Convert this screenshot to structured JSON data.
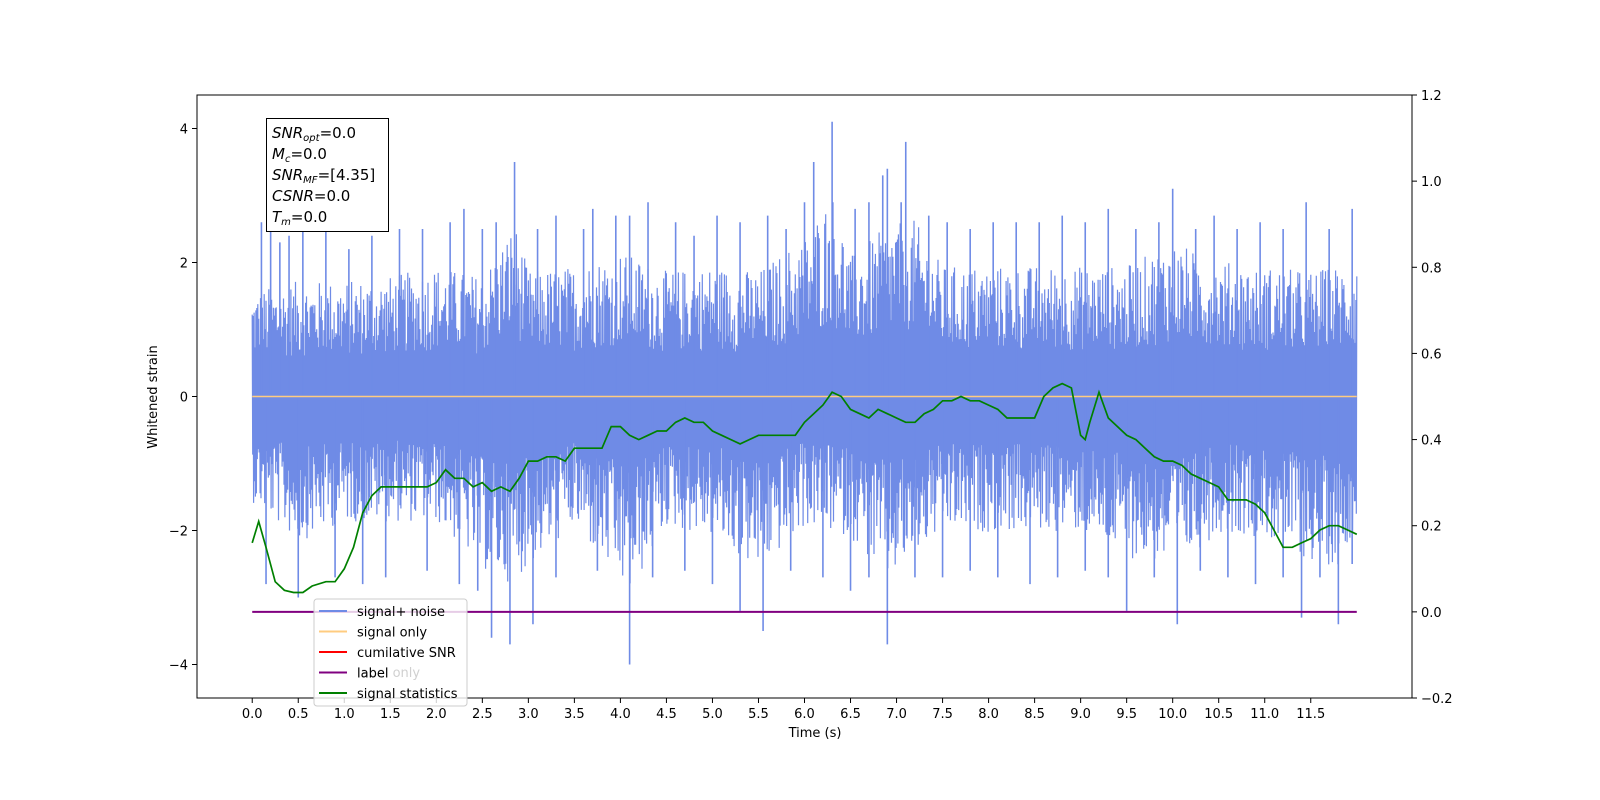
{
  "stats_box": {
    "snr_opt": {
      "sym": "SNR",
      "sub": "opt",
      "value": "=0.0"
    },
    "mc": {
      "sym": "M",
      "sub": "c",
      "value": "=0.0"
    },
    "snr_mf": {
      "sym": "SNR",
      "sub": "MF",
      "value": "=[4.35]"
    },
    "csnr": {
      "sym": "CSNR",
      "value": "=0.0"
    },
    "tm": {
      "sym": "T",
      "sub": "m",
      "value": "=0.0"
    }
  },
  "chart_data": {
    "type": "line",
    "xlabel": "Time (s)",
    "ylabel": "Whitened strain",
    "xlim": [
      -0.6,
      12.6
    ],
    "ylim_left": [
      -4.5,
      4.5
    ],
    "ylim_right": [
      -0.2,
      1.2
    ],
    "x_ticks": [
      "0.0",
      "0.5",
      "1.0",
      "1.5",
      "2.0",
      "2.5",
      "3.0",
      "3.5",
      "4.0",
      "4.5",
      "5.0",
      "5.5",
      "6.0",
      "6.5",
      "7.0",
      "7.5",
      "8.0",
      "8.5",
      "9.0",
      "9.5",
      "10.0",
      "10.5",
      "11.0",
      "11.5"
    ],
    "y_ticks_left": [
      "4",
      "2",
      "0",
      "−2",
      "−4"
    ],
    "y_ticks_right": [
      "1.2",
      "1.0",
      "0.8",
      "0.6",
      "0.4",
      "0.2",
      "0.0",
      "−0.2"
    ],
    "legend": {
      "placement": "lower-left",
      "entries": [
        {
          "label": "signal+ noise",
          "color": "#6f8be6"
        },
        {
          "label": "signal only",
          "color": "#ffcc80"
        },
        {
          "label": "cumilative SNR",
          "color": "#ff0000"
        },
        {
          "label": "label",
          "color": "#800080"
        },
        {
          "label": "signal statistics",
          "color": "#008000"
        }
      ],
      "hidden_entry": "label only"
    },
    "series": [
      {
        "name": "signal+ noise",
        "axis": "left",
        "color": "#6f8be6",
        "x_range": [
          0.0,
          12.0
        ],
        "envelope_upper": [
          [
            0.0,
            2.1
          ],
          [
            0.5,
            2.3
          ],
          [
            1.0,
            2.3
          ],
          [
            1.5,
            2.4
          ],
          [
            2.0,
            2.6
          ],
          [
            2.5,
            2.4
          ],
          [
            2.85,
            3.5
          ],
          [
            3.0,
            2.5
          ],
          [
            3.5,
            2.6
          ],
          [
            4.0,
            2.9
          ],
          [
            4.5,
            2.5
          ],
          [
            5.0,
            2.6
          ],
          [
            5.5,
            2.5
          ],
          [
            6.0,
            3.2
          ],
          [
            6.3,
            4.1
          ],
          [
            6.5,
            2.8
          ],
          [
            6.9,
            3.4
          ],
          [
            7.1,
            3.8
          ],
          [
            7.5,
            2.6
          ],
          [
            8.0,
            2.6
          ],
          [
            8.5,
            2.6
          ],
          [
            9.0,
            2.6
          ],
          [
            9.5,
            2.6
          ],
          [
            10.0,
            3.1
          ],
          [
            10.5,
            2.7
          ],
          [
            11.0,
            2.6
          ],
          [
            11.5,
            2.5
          ],
          [
            12.0,
            2.7
          ]
        ],
        "envelope_lower": [
          [
            0.0,
            -2.1
          ],
          [
            0.5,
            -2.9
          ],
          [
            1.0,
            -2.5
          ],
          [
            1.5,
            -2.5
          ],
          [
            2.0,
            -2.5
          ],
          [
            2.6,
            -3.6
          ],
          [
            2.8,
            -3.7
          ],
          [
            3.0,
            -3.4
          ],
          [
            3.5,
            -2.6
          ],
          [
            4.1,
            -4.0
          ],
          [
            4.5,
            -2.6
          ],
          [
            5.0,
            -2.8
          ],
          [
            5.5,
            -3.5
          ],
          [
            6.0,
            -2.6
          ],
          [
            6.5,
            -2.8
          ],
          [
            6.9,
            -3.7
          ],
          [
            7.5,
            -2.7
          ],
          [
            8.0,
            -2.7
          ],
          [
            8.5,
            -2.7
          ],
          [
            9.0,
            -2.7
          ],
          [
            9.5,
            -3.2
          ],
          [
            10.05,
            -3.4
          ],
          [
            10.5,
            -2.7
          ],
          [
            11.0,
            -2.8
          ],
          [
            11.5,
            -3.3
          ],
          [
            11.8,
            -3.4
          ],
          [
            12.0,
            -2.5
          ]
        ],
        "spikes": [
          [
            0.1,
            2.6
          ],
          [
            0.2,
            2.8
          ],
          [
            0.3,
            2.3
          ],
          [
            0.4,
            2.4
          ],
          [
            0.55,
            2.6
          ],
          [
            0.8,
            2.5
          ],
          [
            1.05,
            2.2
          ],
          [
            1.3,
            2.4
          ],
          [
            1.6,
            2.5
          ],
          [
            1.85,
            2.5
          ],
          [
            2.15,
            2.6
          ],
          [
            2.3,
            2.8
          ],
          [
            2.5,
            2.5
          ],
          [
            2.65,
            2.6
          ],
          [
            2.85,
            3.5
          ],
          [
            3.1,
            2.5
          ],
          [
            3.3,
            2.7
          ],
          [
            3.6,
            2.5
          ],
          [
            3.7,
            2.8
          ],
          [
            3.95,
            2.7
          ],
          [
            4.1,
            2.7
          ],
          [
            4.3,
            2.9
          ],
          [
            4.6,
            2.6
          ],
          [
            4.8,
            2.4
          ],
          [
            5.05,
            2.7
          ],
          [
            5.3,
            2.6
          ],
          [
            5.6,
            2.7
          ],
          [
            5.8,
            2.5
          ],
          [
            6.0,
            2.9
          ],
          [
            6.1,
            3.5
          ],
          [
            6.3,
            4.1
          ],
          [
            6.55,
            2.8
          ],
          [
            6.7,
            2.9
          ],
          [
            6.85,
            3.3
          ],
          [
            6.9,
            3.4
          ],
          [
            7.05,
            2.9
          ],
          [
            7.1,
            3.8
          ],
          [
            7.35,
            2.7
          ],
          [
            7.55,
            2.6
          ],
          [
            7.8,
            2.5
          ],
          [
            8.05,
            2.6
          ],
          [
            8.3,
            2.6
          ],
          [
            8.55,
            2.6
          ],
          [
            8.8,
            2.7
          ],
          [
            9.05,
            2.6
          ],
          [
            9.3,
            2.8
          ],
          [
            9.6,
            2.5
          ],
          [
            9.85,
            2.6
          ],
          [
            10.0,
            3.1
          ],
          [
            10.25,
            2.5
          ],
          [
            10.45,
            2.7
          ],
          [
            10.7,
            2.5
          ],
          [
            10.95,
            2.6
          ],
          [
            11.2,
            2.5
          ],
          [
            11.45,
            2.9
          ],
          [
            11.7,
            2.5
          ],
          [
            11.95,
            2.8
          ],
          [
            0.15,
            -2.8
          ],
          [
            0.5,
            -3.0
          ],
          [
            0.9,
            -2.7
          ],
          [
            1.2,
            -2.8
          ],
          [
            1.45,
            -2.7
          ],
          [
            1.9,
            -2.6
          ],
          [
            2.25,
            -2.8
          ],
          [
            2.45,
            -2.9
          ],
          [
            2.6,
            -3.6
          ],
          [
            2.8,
            -3.7
          ],
          [
            3.05,
            -3.4
          ],
          [
            3.3,
            -2.7
          ],
          [
            3.75,
            -2.6
          ],
          [
            4.1,
            -4.0
          ],
          [
            4.35,
            -2.7
          ],
          [
            4.7,
            -2.6
          ],
          [
            5.0,
            -2.8
          ],
          [
            5.3,
            -3.2
          ],
          [
            5.55,
            -3.5
          ],
          [
            5.85,
            -2.6
          ],
          [
            6.2,
            -2.7
          ],
          [
            6.5,
            -2.9
          ],
          [
            6.7,
            -2.7
          ],
          [
            6.9,
            -3.7
          ],
          [
            7.2,
            -2.7
          ],
          [
            7.5,
            -2.7
          ],
          [
            7.8,
            -2.6
          ],
          [
            8.1,
            -2.7
          ],
          [
            8.45,
            -2.8
          ],
          [
            8.75,
            -2.7
          ],
          [
            9.05,
            -2.6
          ],
          [
            9.3,
            -2.7
          ],
          [
            9.5,
            -3.2
          ],
          [
            9.8,
            -2.7
          ],
          [
            10.05,
            -3.4
          ],
          [
            10.3,
            -2.6
          ],
          [
            10.6,
            -2.7
          ],
          [
            10.9,
            -2.8
          ],
          [
            11.2,
            -2.7
          ],
          [
            11.4,
            -3.3
          ],
          [
            11.6,
            -2.7
          ],
          [
            11.8,
            -3.4
          ],
          [
            11.95,
            -2.5
          ]
        ]
      },
      {
        "name": "signal only",
        "axis": "left",
        "color": "#ffcc80",
        "x": [
          0.0,
          12.0
        ],
        "y": [
          0.0,
          0.0
        ]
      },
      {
        "name": "label",
        "axis": "right",
        "color": "#800080",
        "x": [
          0.0,
          12.0
        ],
        "y": [
          0.0,
          0.0
        ]
      },
      {
        "name": "signal statistics",
        "axis": "right",
        "color": "#008000",
        "points": [
          [
            0.0,
            0.16
          ],
          [
            0.07,
            0.21
          ],
          [
            0.15,
            0.15
          ],
          [
            0.25,
            0.07
          ],
          [
            0.35,
            0.05
          ],
          [
            0.45,
            0.045
          ],
          [
            0.55,
            0.045
          ],
          [
            0.65,
            0.06
          ],
          [
            0.8,
            0.07
          ],
          [
            0.9,
            0.07
          ],
          [
            1.0,
            0.1
          ],
          [
            1.1,
            0.15
          ],
          [
            1.2,
            0.23
          ],
          [
            1.3,
            0.27
          ],
          [
            1.4,
            0.29
          ],
          [
            1.5,
            0.29
          ],
          [
            1.6,
            0.29
          ],
          [
            1.8,
            0.29
          ],
          [
            1.9,
            0.29
          ],
          [
            2.0,
            0.3
          ],
          [
            2.1,
            0.33
          ],
          [
            2.2,
            0.31
          ],
          [
            2.3,
            0.31
          ],
          [
            2.4,
            0.29
          ],
          [
            2.5,
            0.3
          ],
          [
            2.6,
            0.28
          ],
          [
            2.7,
            0.29
          ],
          [
            2.8,
            0.28
          ],
          [
            2.9,
            0.31
          ],
          [
            3.0,
            0.35
          ],
          [
            3.1,
            0.35
          ],
          [
            3.2,
            0.36
          ],
          [
            3.3,
            0.36
          ],
          [
            3.4,
            0.35
          ],
          [
            3.5,
            0.38
          ],
          [
            3.6,
            0.38
          ],
          [
            3.7,
            0.38
          ],
          [
            3.8,
            0.38
          ],
          [
            3.9,
            0.43
          ],
          [
            4.0,
            0.43
          ],
          [
            4.1,
            0.41
          ],
          [
            4.2,
            0.4
          ],
          [
            4.3,
            0.41
          ],
          [
            4.4,
            0.42
          ],
          [
            4.5,
            0.42
          ],
          [
            4.6,
            0.44
          ],
          [
            4.7,
            0.45
          ],
          [
            4.8,
            0.44
          ],
          [
            4.9,
            0.44
          ],
          [
            5.0,
            0.42
          ],
          [
            5.1,
            0.41
          ],
          [
            5.2,
            0.4
          ],
          [
            5.3,
            0.39
          ],
          [
            5.4,
            0.4
          ],
          [
            5.5,
            0.41
          ],
          [
            5.6,
            0.41
          ],
          [
            5.7,
            0.41
          ],
          [
            5.8,
            0.41
          ],
          [
            5.9,
            0.41
          ],
          [
            6.0,
            0.44
          ],
          [
            6.1,
            0.46
          ],
          [
            6.2,
            0.48
          ],
          [
            6.3,
            0.51
          ],
          [
            6.4,
            0.5
          ],
          [
            6.5,
            0.47
          ],
          [
            6.6,
            0.46
          ],
          [
            6.7,
            0.45
          ],
          [
            6.8,
            0.47
          ],
          [
            6.9,
            0.46
          ],
          [
            7.0,
            0.45
          ],
          [
            7.1,
            0.44
          ],
          [
            7.2,
            0.44
          ],
          [
            7.3,
            0.46
          ],
          [
            7.4,
            0.47
          ],
          [
            7.5,
            0.49
          ],
          [
            7.6,
            0.49
          ],
          [
            7.7,
            0.5
          ],
          [
            7.8,
            0.49
          ],
          [
            7.9,
            0.49
          ],
          [
            8.0,
            0.48
          ],
          [
            8.1,
            0.47
          ],
          [
            8.2,
            0.45
          ],
          [
            8.3,
            0.45
          ],
          [
            8.4,
            0.45
          ],
          [
            8.5,
            0.45
          ],
          [
            8.6,
            0.5
          ],
          [
            8.7,
            0.52
          ],
          [
            8.8,
            0.53
          ],
          [
            8.9,
            0.52
          ],
          [
            9.0,
            0.41
          ],
          [
            9.05,
            0.4
          ],
          [
            9.1,
            0.44
          ],
          [
            9.2,
            0.51
          ],
          [
            9.3,
            0.45
          ],
          [
            9.4,
            0.43
          ],
          [
            9.5,
            0.41
          ],
          [
            9.6,
            0.4
          ],
          [
            9.7,
            0.38
          ],
          [
            9.8,
            0.36
          ],
          [
            9.9,
            0.35
          ],
          [
            10.0,
            0.35
          ],
          [
            10.1,
            0.34
          ],
          [
            10.2,
            0.32
          ],
          [
            10.3,
            0.31
          ],
          [
            10.4,
            0.3
          ],
          [
            10.5,
            0.29
          ],
          [
            10.6,
            0.26
          ],
          [
            10.7,
            0.26
          ],
          [
            10.8,
            0.26
          ],
          [
            10.9,
            0.25
          ],
          [
            11.0,
            0.23
          ],
          [
            11.1,
            0.19
          ],
          [
            11.2,
            0.15
          ],
          [
            11.3,
            0.15
          ],
          [
            11.4,
            0.16
          ],
          [
            11.5,
            0.17
          ],
          [
            11.6,
            0.19
          ],
          [
            11.7,
            0.2
          ],
          [
            11.8,
            0.2
          ],
          [
            11.9,
            0.19
          ],
          [
            12.0,
            0.18
          ]
        ]
      }
    ]
  }
}
